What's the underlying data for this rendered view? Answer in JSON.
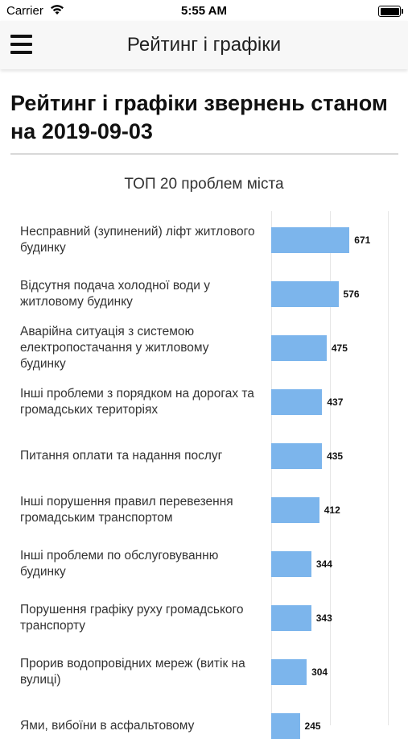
{
  "status_bar": {
    "carrier": "Carrier",
    "time": "5:55 AM"
  },
  "nav": {
    "title": "Рейтинг і графіки"
  },
  "page": {
    "title": "Рейтинг і графіки звернень станом на 2019-09-03"
  },
  "chart_data": {
    "type": "bar",
    "orientation": "horizontal",
    "title": "ТОП 20 проблем міста",
    "xlabel": "",
    "ylabel": "",
    "xlim": [
      0,
      1000
    ],
    "grid": true,
    "legend": "none",
    "colors": {
      "bar": "#7cb5ec"
    },
    "categories": [
      "Несправний (зупинений) ліфт житлового будинку",
      "Відсутня подача холодної води у житловому будинку",
      "Аварійна ситуація з системою електропостачання у житловому будинку",
      "Інші проблеми з порядком на дорогах та громадських територіях",
      "Питання оплати та надання послуг",
      "Інші порушення правил перевезення громадським транспортом",
      "Інші проблеми по обслуговуванню будинку",
      "Порушення графіку руху громадського транспорту",
      "Прорив водопровідних мереж (витік на вулиці)",
      "Ями, вибоїни в асфальтовому"
    ],
    "values": [
      671,
      576,
      475,
      437,
      435,
      412,
      344,
      343,
      304,
      245
    ]
  }
}
